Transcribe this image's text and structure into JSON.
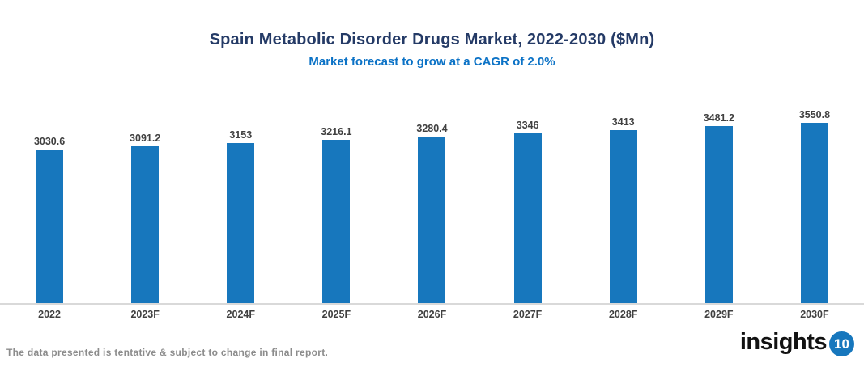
{
  "header": {
    "title": "Spain Metabolic Disorder Drugs Market, 2022-2030 ($Mn)",
    "subtitle": "Market forecast to grow at a CAGR of 2.0%"
  },
  "chart_data": {
    "type": "bar",
    "categories": [
      "2022",
      "2023F",
      "2024F",
      "2025F",
      "2026F",
      "2027F",
      "2028F",
      "2029F",
      "2030F"
    ],
    "values": [
      3030.6,
      3091.2,
      3153,
      3216.1,
      3280.4,
      3346,
      3413,
      3481.2,
      3550.8
    ],
    "title": "Spain Metabolic Disorder Drugs Market, 2022-2030 ($Mn)",
    "subtitle": "Market forecast to grow at a CAGR of 2.0%",
    "xlabel": "",
    "ylabel": "",
    "ylim": [
      0,
      3550.8
    ],
    "grid": false,
    "legend": false,
    "value_labels_shown": true
  },
  "colors": {
    "title": "#243A66",
    "subtitle": "#0B72C6",
    "bar": "#1777BD",
    "axis_line": "#D9D9D9",
    "data_labels": "#404040",
    "x_labels": "#404040",
    "footer_text": "#8C8C8C",
    "logo_text": "#121212",
    "logo_badge_bg": "#1777BD",
    "logo_badge_text": "#FFFFFF"
  },
  "footer": {
    "note": "The data presented is tentative & subject to change in final report.",
    "logo_text": "insights",
    "logo_badge": "10"
  }
}
